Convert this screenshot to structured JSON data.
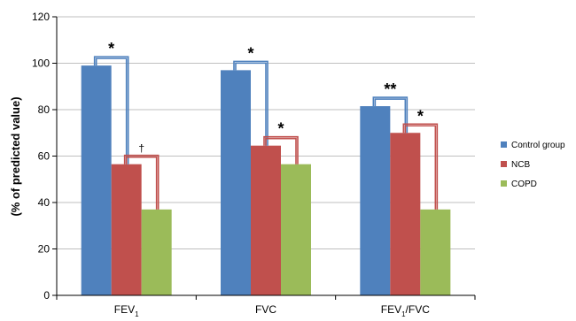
{
  "chart_data": {
    "type": "bar",
    "ylabel": "(% of predicted value)",
    "ylim": [
      0,
      120
    ],
    "yticks": [
      0,
      20,
      40,
      60,
      80,
      100,
      120
    ],
    "grid": true,
    "legend_position": "right",
    "categories": [
      {
        "label": "FEV",
        "sub": "1",
        "suffix": ""
      },
      {
        "label": "FVC",
        "sub": "",
        "suffix": ""
      },
      {
        "label": "FEV",
        "sub": "1",
        "suffix": "/FVC"
      }
    ],
    "series": [
      {
        "name": "Control group",
        "color": "#4F81BD",
        "values": [
          99,
          97,
          81.5
        ]
      },
      {
        "name": "NCB",
        "color": "#C0504D",
        "values": [
          56.5,
          64.5,
          70
        ]
      },
      {
        "name": "COPD",
        "color": "#9BBB59",
        "values": [
          37,
          56.5,
          37
        ]
      }
    ],
    "annotations": [
      {
        "category": 0,
        "from": 0,
        "to": 1,
        "symbol": "*"
      },
      {
        "category": 0,
        "from": 1,
        "to": 2,
        "symbol": "†"
      },
      {
        "category": 1,
        "from": 0,
        "to": 1,
        "symbol": "*"
      },
      {
        "category": 1,
        "from": 1,
        "to": 2,
        "symbol": "*"
      },
      {
        "category": 2,
        "from": 0,
        "to": 1,
        "symbol": "**"
      },
      {
        "category": 2,
        "from": 1,
        "to": 2,
        "symbol": "*"
      }
    ]
  }
}
